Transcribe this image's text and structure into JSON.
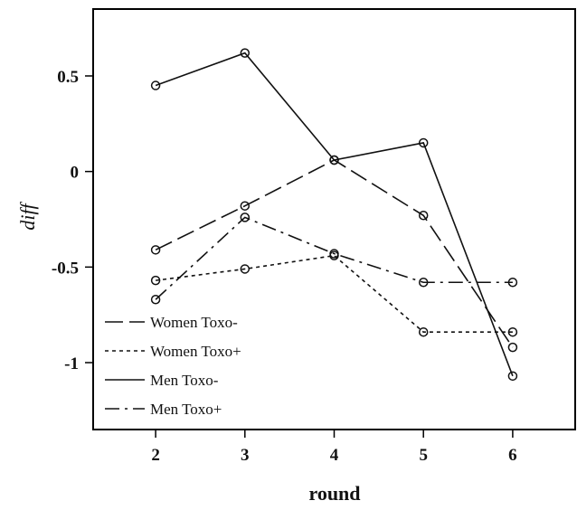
{
  "chart_data": {
    "type": "line",
    "title": "",
    "xlabel": "round",
    "ylabel": "diff",
    "x": [
      2,
      3,
      4,
      5,
      6
    ],
    "xlim": [
      1.3,
      6.7
    ],
    "ylim": [
      -1.35,
      0.85
    ],
    "xticks": [
      "2",
      "3",
      "4",
      "5",
      "6"
    ],
    "yticks": [
      {
        "value": 0.5,
        "label": "0.5"
      },
      {
        "value": 0,
        "label": "0"
      },
      {
        "value": -0.5,
        "label": "-0.5"
      },
      {
        "value": -1,
        "label": "-1"
      }
    ],
    "grid": false,
    "legend_position": "bottom-left",
    "marker": "open-circle",
    "series": [
      {
        "name": "Women Toxo-",
        "dash": "long-dash",
        "values": [
          -0.41,
          -0.18,
          0.06,
          -0.23,
          -0.92
        ]
      },
      {
        "name": "Women Toxo+",
        "dash": "dotted",
        "values": [
          -0.57,
          -0.51,
          -0.44,
          -0.84,
          -0.84
        ]
      },
      {
        "name": "Men Toxo-",
        "dash": "solid",
        "values": [
          0.45,
          0.62,
          0.06,
          0.15,
          -1.07
        ]
      },
      {
        "name": "Men Toxo+",
        "dash": "dash-dot",
        "values": [
          -0.67,
          -0.24,
          -0.43,
          -0.58,
          -0.58
        ]
      }
    ]
  }
}
